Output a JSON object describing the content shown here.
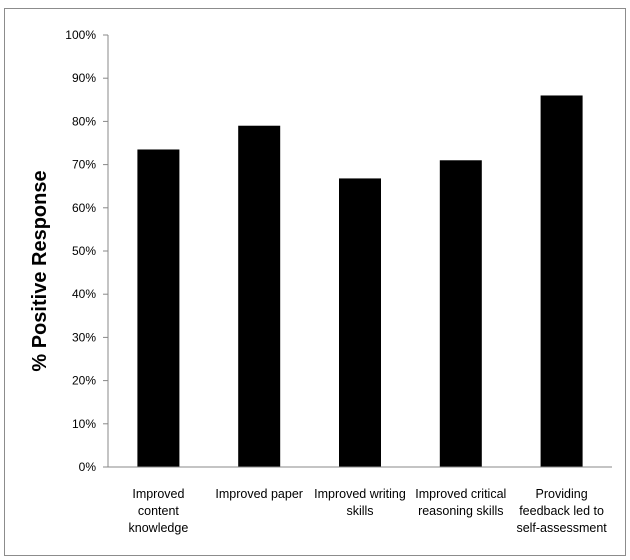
{
  "chart_data": {
    "type": "bar",
    "title": "",
    "xlabel": "",
    "ylabel": "% Positive Response",
    "ylim": [
      0,
      100
    ],
    "yticks": [
      "0%",
      "10%",
      "20%",
      "30%",
      "40%",
      "50%",
      "60%",
      "70%",
      "80%",
      "90%",
      "100%"
    ],
    "categories": [
      [
        "Improved",
        "content",
        "knowledge"
      ],
      [
        "Improved paper"
      ],
      [
        "Improved writing",
        "skills"
      ],
      [
        "Improved critical",
        "reasoning skills"
      ],
      [
        "Providing",
        "feedback led to",
        "self-assessment"
      ]
    ],
    "values": [
      73.5,
      79,
      66.8,
      71,
      86
    ],
    "bar_color": "#000000",
    "grid": false,
    "legend": "none"
  }
}
